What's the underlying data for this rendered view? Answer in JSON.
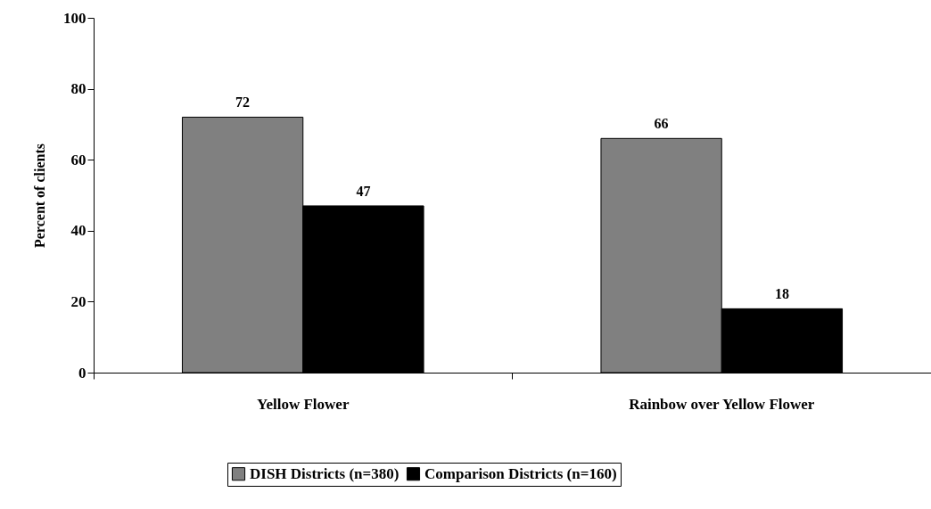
{
  "chart_data": {
    "type": "bar",
    "ylabel": "Percent of clients",
    "categories": [
      "Yellow Flower",
      "Rainbow over Yellow Flower"
    ],
    "series": [
      {
        "name": "DISH Districts (n=380)",
        "color": "#808080",
        "values": [
          72,
          66
        ]
      },
      {
        "name": "Comparison Districts (n=160)",
        "color": "#000000",
        "values": [
          47,
          18
        ]
      }
    ],
    "ylim": [
      0,
      100
    ],
    "yticks": [
      0,
      20,
      40,
      60,
      80,
      100
    ],
    "grid": false,
    "legend": "bottom",
    "data_labels": true
  }
}
